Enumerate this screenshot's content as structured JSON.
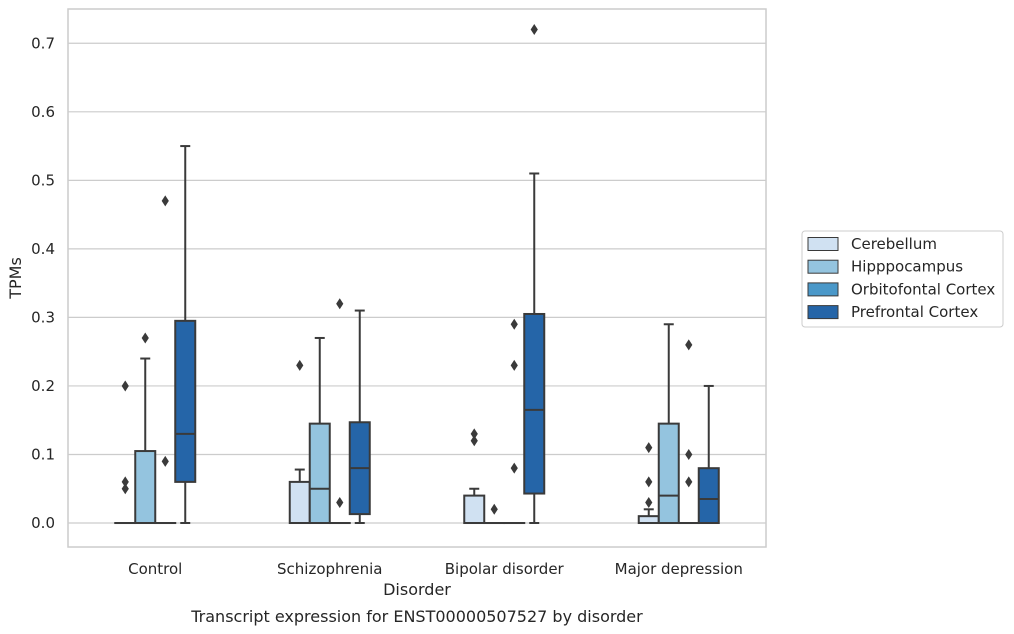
{
  "caption": "Transcript expression for ENST00000507527 by disorder",
  "chart_data": {
    "type": "box",
    "xlabel": "Disorder",
    "ylabel": "TPMs",
    "ylim": [
      -0.035,
      0.75
    ],
    "yticks": [
      0.0,
      0.1,
      0.2,
      0.3,
      0.4,
      0.5,
      0.6,
      0.7
    ],
    "ytick_labels": [
      "0.0",
      "0.1",
      "0.2",
      "0.3",
      "0.4",
      "0.5",
      "0.6",
      "0.7"
    ],
    "grid": true,
    "legend_position": "right",
    "categories": [
      "Control",
      "Schizophrenia",
      "Bipolar disorder",
      "Major depression"
    ],
    "series": [
      {
        "name": "Cerebellum",
        "color": "#d0e1f2",
        "boxes": [
          {
            "q1": 0.0,
            "median": 0.0,
            "q3": 0.0,
            "whislo": 0.0,
            "whishi": 0.0,
            "fliers": [
              0.2,
              0.06,
              0.05
            ]
          },
          {
            "q1": 0.0,
            "median": 0.0,
            "q3": 0.06,
            "whislo": 0.0,
            "whishi": 0.078,
            "fliers": [
              0.23
            ]
          },
          {
            "q1": 0.0,
            "median": 0.0,
            "q3": 0.04,
            "whislo": 0.0,
            "whishi": 0.05,
            "fliers": [
              0.13,
              0.12
            ]
          },
          {
            "q1": 0.0,
            "median": 0.0,
            "q3": 0.01,
            "whislo": 0.0,
            "whishi": 0.02,
            "fliers": [
              0.11,
              0.06,
              0.03
            ]
          }
        ]
      },
      {
        "name": "Hipppocampus",
        "color": "#94c4df",
        "boxes": [
          {
            "q1": 0.0,
            "median": 0.0,
            "q3": 0.105,
            "whislo": 0.0,
            "whishi": 0.24,
            "fliers": [
              0.27
            ]
          },
          {
            "q1": 0.0,
            "median": 0.05,
            "q3": 0.145,
            "whislo": 0.0,
            "whishi": 0.27,
            "fliers": []
          },
          {
            "q1": 0.0,
            "median": 0.0,
            "q3": 0.0,
            "whislo": 0.0,
            "whishi": 0.0,
            "fliers": [
              0.02
            ]
          },
          {
            "q1": 0.0,
            "median": 0.04,
            "q3": 0.145,
            "whislo": 0.0,
            "whishi": 0.29,
            "fliers": []
          }
        ]
      },
      {
        "name": "Orbitofontal Cortex",
        "color": "#4a98c9",
        "boxes": [
          {
            "q1": 0.0,
            "median": 0.0,
            "q3": 0.0,
            "whislo": 0.0,
            "whishi": 0.0,
            "fliers": [
              0.47,
              0.09
            ]
          },
          {
            "q1": 0.0,
            "median": 0.0,
            "q3": 0.0,
            "whislo": 0.0,
            "whishi": 0.0,
            "fliers": [
              0.32,
              0.03
            ]
          },
          {
            "q1": 0.0,
            "median": 0.0,
            "q3": 0.0,
            "whislo": 0.0,
            "whishi": 0.0,
            "fliers": [
              0.29,
              0.23,
              0.08
            ]
          },
          {
            "q1": 0.0,
            "median": 0.0,
            "q3": 0.0,
            "whislo": 0.0,
            "whishi": 0.0,
            "fliers": [
              0.26,
              0.1,
              0.06
            ]
          }
        ]
      },
      {
        "name": "Prefrontal Cortex",
        "color": "#2565a8",
        "boxes": [
          {
            "q1": 0.06,
            "median": 0.13,
            "q3": 0.295,
            "whislo": 0.0,
            "whishi": 0.55,
            "fliers": []
          },
          {
            "q1": 0.013,
            "median": 0.08,
            "q3": 0.147,
            "whislo": 0.0,
            "whishi": 0.31,
            "fliers": []
          },
          {
            "q1": 0.043,
            "median": 0.165,
            "q3": 0.305,
            "whislo": 0.0,
            "whishi": 0.51,
            "fliers": [
              0.72
            ]
          },
          {
            "q1": 0.0,
            "median": 0.035,
            "q3": 0.08,
            "whislo": 0.0,
            "whishi": 0.2,
            "fliers": []
          }
        ]
      }
    ]
  }
}
